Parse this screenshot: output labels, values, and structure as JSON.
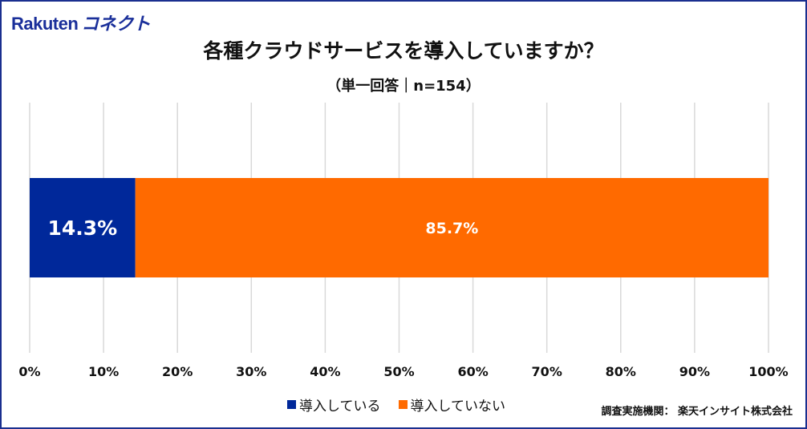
{
  "logo": {
    "text": "Rakuten",
    "kana": "コネクト"
  },
  "chart_data": {
    "type": "bar",
    "orientation": "horizontal-stacked-100",
    "title": "各種クラウドサービスを導入していますか？",
    "subtitle": "（単一回答｜n=154）",
    "categories": [
      ""
    ],
    "series": [
      {
        "name": "導入している",
        "values": [
          14.3
        ],
        "label": "14.3%",
        "color": "#00289a"
      },
      {
        "name": "導入していない",
        "values": [
          85.7
        ],
        "label": "85.7%",
        "color": "#ff6a00"
      }
    ],
    "xlim": [
      0,
      100
    ],
    "xticks": [
      "0%",
      "10%",
      "20%",
      "30%",
      "40%",
      "50%",
      "60%",
      "70%",
      "80%",
      "90%",
      "100%"
    ],
    "grid": true,
    "legend_position": "bottom"
  },
  "source": "調査実施機関： 楽天インサイト株式会社",
  "colors": {
    "frame": "#1a2f8f",
    "grid": "#d9d9d9"
  }
}
